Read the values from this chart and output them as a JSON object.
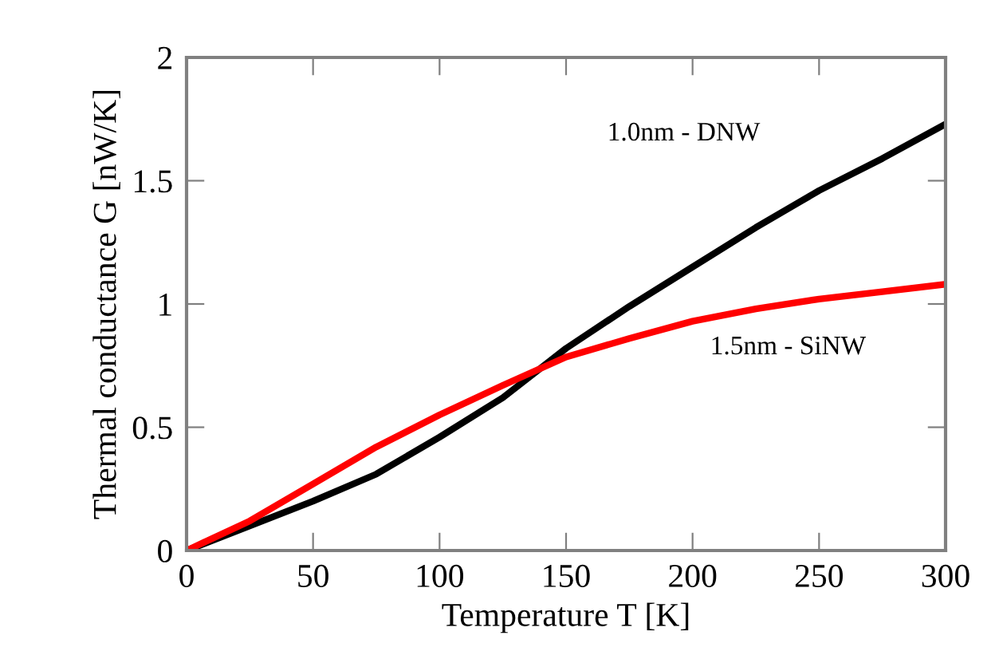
{
  "chart_data": {
    "type": "line",
    "xlabel": "Temperature T [K]",
    "ylabel": "Thermal conductance G [nW/K]",
    "x": [
      0,
      25,
      50,
      75,
      100,
      125,
      150,
      175,
      200,
      225,
      250,
      275,
      300
    ],
    "series": [
      {
        "name": "1.0nm - DNW",
        "color": "#000000",
        "values": [
          0,
          0.1,
          0.2,
          0.31,
          0.46,
          0.62,
          0.82,
          0.99,
          1.15,
          1.31,
          1.46,
          1.59,
          1.73
        ]
      },
      {
        "name": "1.5nm - SiNW",
        "color": "#ff0000",
        "values": [
          0,
          0.12,
          0.27,
          0.42,
          0.55,
          0.67,
          0.785,
          0.86,
          0.93,
          0.98,
          1.02,
          1.05,
          1.08
        ]
      }
    ],
    "xlim": [
      0,
      300
    ],
    "ylim": [
      0,
      2
    ],
    "xticks": [
      0,
      50,
      100,
      150,
      200,
      250,
      300
    ],
    "yticks": [
      0,
      0.5,
      1,
      1.5,
      2
    ],
    "grid": false,
    "legend": false,
    "marker": "none",
    "line_style": "solid"
  }
}
